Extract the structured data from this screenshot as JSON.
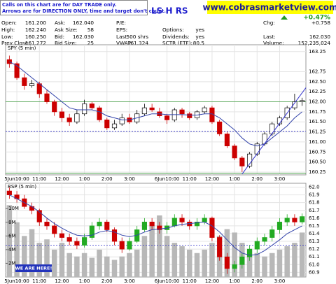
{
  "header": {
    "disclaimer": [
      "Calls on this chart are for DAY TRADE only.",
      "Arrows are for DIRECTION ONLY, time and target don't count."
    ],
    "title": "LS H RS",
    "website": "www.cobrasmarketview.com",
    "change_pct": "+0.47%"
  },
  "quote": {
    "columns": [
      [
        {
          "label": "Open:",
          "value": "161.200"
        },
        {
          "label": "High:",
          "value": "162.240"
        },
        {
          "label": "Low:",
          "value": "160.250"
        },
        {
          "label": "Prev Close:",
          "value": "161.272"
        }
      ],
      [
        {
          "label": "Ask:",
          "value": "162.040"
        },
        {
          "label": "Ask Size:",
          "value": "58"
        },
        {
          "label": "Bid:",
          "value": "162.030"
        },
        {
          "label": "Bid Size:",
          "value": "25"
        }
      ],
      [
        {
          "label": "P/E:"
        },
        {
          "label": "EPS:"
        },
        {
          "label": "Last:",
          "value": "500 shrs"
        },
        {
          "label": "VWAP:",
          "value": "161.324"
        }
      ],
      [
        null,
        {
          "label": "Options:",
          "value": "yes"
        },
        {
          "label": "Dividends:",
          "value": "yes"
        },
        {
          "label": "SCTR (ETF):",
          "value": "80.5"
        }
      ],
      [
        {
          "label": "Chg:",
          "value": "+0.758"
        },
        null,
        {
          "label": "Last:",
          "value": "162.030"
        },
        {
          "label": "Volume:",
          "value": "152,235,024"
        }
      ]
    ]
  },
  "chart_data": [
    {
      "type": "candlestick",
      "title": "SPY (5 min)",
      "up_color": "#000000",
      "down_color": "#cc0000",
      "xlim": [
        -0.5,
        39.5
      ],
      "ylim": [
        160.18,
        163.42
      ],
      "xticks": [
        {
          "value": 1,
          "label": "5Jun10:00"
        },
        {
          "value": 4,
          "label": "11:00"
        },
        {
          "value": 7,
          "label": "12:00"
        },
        {
          "value": 10,
          "label": "1:00"
        },
        {
          "value": 13,
          "label": "2:00"
        },
        {
          "value": 16,
          "label": "3:00"
        },
        {
          "value": 21,
          "label": "6Jun10:00"
        },
        {
          "value": 24,
          "label": "11:00"
        },
        {
          "value": 27,
          "label": "12:00"
        },
        {
          "value": 30,
          "label": "1:00"
        },
        {
          "value": 33,
          "label": "2:00"
        },
        {
          "value": 36,
          "label": "3:00"
        }
      ],
      "yticks": [
        163.25,
        162.75,
        {
          "value": 162.5,
          "label": "162.50"
        },
        162.25,
        {
          "value": 162,
          "label": "162.00"
        },
        161.75,
        {
          "value": 161.5,
          "label": "161.50"
        },
        161.25,
        {
          "value": 161,
          "label": "161.00"
        },
        160.75,
        {
          "value": 160.5,
          "label": "160.50"
        },
        160.25
      ],
      "open": [
        163.05,
        162.95,
        162.6,
        162.4,
        162.45,
        162.2,
        162.0,
        161.75,
        161.6,
        161.5,
        161.7,
        161.95,
        161.85,
        161.55,
        161.35,
        161.45,
        161.6,
        161.5,
        161.7,
        161.85,
        161.75,
        161.65,
        161.55,
        161.8,
        161.7,
        161.6,
        161.75,
        161.85,
        161.5,
        161.2,
        160.9,
        160.6,
        160.4,
        160.7,
        160.95,
        161.2,
        161.45,
        161.6,
        161.85,
        162.0
      ],
      "high": [
        163.15,
        163.0,
        162.7,
        162.55,
        162.5,
        162.3,
        162.05,
        161.85,
        161.7,
        161.8,
        162.05,
        162.0,
        161.9,
        161.6,
        161.55,
        161.7,
        161.7,
        161.8,
        161.95,
        161.95,
        161.85,
        161.7,
        161.85,
        161.85,
        161.75,
        161.8,
        161.9,
        161.9,
        161.55,
        161.25,
        160.95,
        160.65,
        160.75,
        161.0,
        161.25,
        161.5,
        161.65,
        161.9,
        162.2,
        162.1
      ],
      "low": [
        162.85,
        162.55,
        162.3,
        162.35,
        162.1,
        161.95,
        161.65,
        161.5,
        161.4,
        161.45,
        161.65,
        161.8,
        161.5,
        161.3,
        161.3,
        161.4,
        161.45,
        161.45,
        161.65,
        161.75,
        161.6,
        161.45,
        161.5,
        161.6,
        161.55,
        161.55,
        161.7,
        161.45,
        161.15,
        160.85,
        160.55,
        160.25,
        160.35,
        160.65,
        160.9,
        161.15,
        161.4,
        161.55,
        161.8,
        161.9
      ],
      "close": [
        162.95,
        162.6,
        162.4,
        162.45,
        162.2,
        162.0,
        161.75,
        161.6,
        161.5,
        161.7,
        161.95,
        161.85,
        161.55,
        161.35,
        161.45,
        161.6,
        161.5,
        161.7,
        161.85,
        161.8,
        161.65,
        161.55,
        161.8,
        161.7,
        161.6,
        161.75,
        161.85,
        161.5,
        161.2,
        160.9,
        160.6,
        160.4,
        160.7,
        160.95,
        161.2,
        161.45,
        161.6,
        161.85,
        162.0,
        162.03
      ],
      "ma": {
        "color": "#3344aa",
        "values": [
          163.0,
          162.9,
          162.75,
          162.6,
          162.45,
          162.3,
          162.15,
          162.0,
          161.85,
          161.8,
          161.8,
          161.8,
          161.75,
          161.65,
          161.6,
          161.55,
          161.55,
          161.6,
          161.65,
          161.7,
          161.7,
          161.68,
          161.68,
          161.68,
          161.67,
          161.67,
          161.7,
          161.7,
          161.6,
          161.45,
          161.3,
          161.1,
          160.95,
          160.9,
          160.95,
          161.1,
          161.25,
          161.4,
          161.6,
          161.75
        ]
      },
      "hlines": [
        {
          "value": 162.0,
          "color": "#339933",
          "style": "solid"
        },
        {
          "value": 161.27,
          "color": "#3333cc",
          "style": "dashed"
        },
        {
          "value": 160.22,
          "color": "#339933",
          "style": "solid"
        }
      ],
      "trendline": {
        "x": [
          31,
          39.5
        ],
        "y": [
          160.2,
          162.35
        ],
        "color": "#3333cc"
      }
    },
    {
      "type": "candlestick",
      "title": "RSP (5 min)",
      "up_color": "#22aa22",
      "down_color": "#cc0000",
      "xlim": [
        -0.5,
        39.5
      ],
      "ylim": [
        60.84,
        62.05
      ],
      "y2lim": [
        0,
        13700000
      ],
      "xticks": [
        {
          "value": 1,
          "label": "5Jun10:00"
        },
        {
          "value": 4,
          "label": "11:00"
        },
        {
          "value": 7,
          "label": "12:00"
        },
        {
          "value": 10,
          "label": "1:00"
        },
        {
          "value": 13,
          "label": "2:00"
        },
        {
          "value": 16,
          "label": "3:00"
        },
        {
          "value": 21,
          "label": "6Jun10:00"
        },
        {
          "value": 24,
          "label": "11:00"
        },
        {
          "value": 27,
          "label": "12:00"
        },
        {
          "value": 30,
          "label": "1:00"
        },
        {
          "value": 33,
          "label": "2:00"
        },
        {
          "value": 36,
          "label": "3:00"
        }
      ],
      "yticks": [
        {
          "value": 62,
          "label": "62.0"
        },
        61.9,
        61.8,
        61.7,
        61.6,
        61.5,
        61.4,
        61.3,
        61.2,
        61.1,
        {
          "value": 61,
          "label": "61.0"
        },
        60.9
      ],
      "y2ticks": [
        {
          "value": 2000000,
          "label": "2M"
        },
        {
          "value": 4000000,
          "label": "4M"
        },
        {
          "value": 6000000,
          "label": "6M"
        },
        {
          "value": 8000000,
          "label": "8M"
        },
        {
          "value": 10000000,
          "label": "10M"
        }
      ],
      "open": [
        61.95,
        61.9,
        61.85,
        61.75,
        61.7,
        61.55,
        61.5,
        61.4,
        61.35,
        61.3,
        61.25,
        61.35,
        61.5,
        61.55,
        61.45,
        61.3,
        61.2,
        61.3,
        61.45,
        61.55,
        61.5,
        61.45,
        61.5,
        61.6,
        61.55,
        61.5,
        61.55,
        61.6,
        61.35,
        61.1,
        60.95,
        61.0,
        61.1,
        61.2,
        61.3,
        61.35,
        61.45,
        61.55,
        61.6,
        61.55
      ],
      "high": [
        62.0,
        61.95,
        61.9,
        61.8,
        61.72,
        61.6,
        61.55,
        61.45,
        61.4,
        61.35,
        61.4,
        61.55,
        61.6,
        61.58,
        61.48,
        61.35,
        61.35,
        61.5,
        61.6,
        61.6,
        61.55,
        61.55,
        61.65,
        61.65,
        61.58,
        61.6,
        61.65,
        61.62,
        61.38,
        61.15,
        61.05,
        61.15,
        61.25,
        61.35,
        61.4,
        61.5,
        61.6,
        61.65,
        61.65,
        61.66
      ],
      "low": [
        61.85,
        61.8,
        61.72,
        61.65,
        61.5,
        61.45,
        61.35,
        61.3,
        61.25,
        61.2,
        61.22,
        61.32,
        61.45,
        61.42,
        61.25,
        61.15,
        61.18,
        61.28,
        61.42,
        61.45,
        61.4,
        61.4,
        61.48,
        61.5,
        61.45,
        61.45,
        61.52,
        61.3,
        61.05,
        60.88,
        60.9,
        60.95,
        61.05,
        61.15,
        61.25,
        61.3,
        61.4,
        61.5,
        61.5,
        61.52
      ],
      "close": [
        61.9,
        61.85,
        61.75,
        61.7,
        61.55,
        61.5,
        61.4,
        61.35,
        61.3,
        61.25,
        61.35,
        61.5,
        61.55,
        61.45,
        61.3,
        61.2,
        61.3,
        61.45,
        61.55,
        61.5,
        61.45,
        61.5,
        61.6,
        61.55,
        61.5,
        61.55,
        61.6,
        61.35,
        61.1,
        60.95,
        61.0,
        61.1,
        61.2,
        61.3,
        61.35,
        61.45,
        61.55,
        61.6,
        61.55,
        61.62
      ],
      "volume": {
        "axis": "y2",
        "color": "#b8b8b8",
        "values": [
          10500000,
          8000000,
          6000000,
          7000000,
          5000000,
          5500000,
          4000000,
          5000000,
          3500000,
          3000000,
          3500000,
          2800000,
          4000000,
          3000000,
          2500000,
          3000000,
          3500000,
          4000000,
          6000000,
          7500000,
          9000000,
          6000000,
          5000000,
          4500000,
          4000000,
          3500000,
          4000000,
          5000000,
          6000000,
          7000000,
          6500000,
          5000000,
          4000000,
          3500000,
          3000000,
          3500000,
          4000000,
          4500000,
          5000000,
          6500000
        ]
      },
      "ma": {
        "color": "#3344aa",
        "values": [
          61.9,
          61.85,
          61.8,
          61.75,
          61.68,
          61.6,
          61.53,
          61.47,
          61.42,
          61.38,
          61.37,
          61.38,
          61.42,
          61.44,
          61.42,
          61.38,
          61.36,
          61.38,
          61.42,
          61.45,
          61.46,
          61.47,
          61.5,
          61.52,
          61.53,
          61.54,
          61.55,
          61.5,
          61.42,
          61.32,
          61.22,
          61.15,
          61.12,
          61.13,
          61.18,
          61.25,
          61.32,
          61.4,
          61.45,
          61.5
        ]
      },
      "hlines": [
        {
          "value": 61.25,
          "color": "#3333cc",
          "style": "dashed"
        }
      ],
      "annotation": "WE ARE HERE!"
    }
  ]
}
